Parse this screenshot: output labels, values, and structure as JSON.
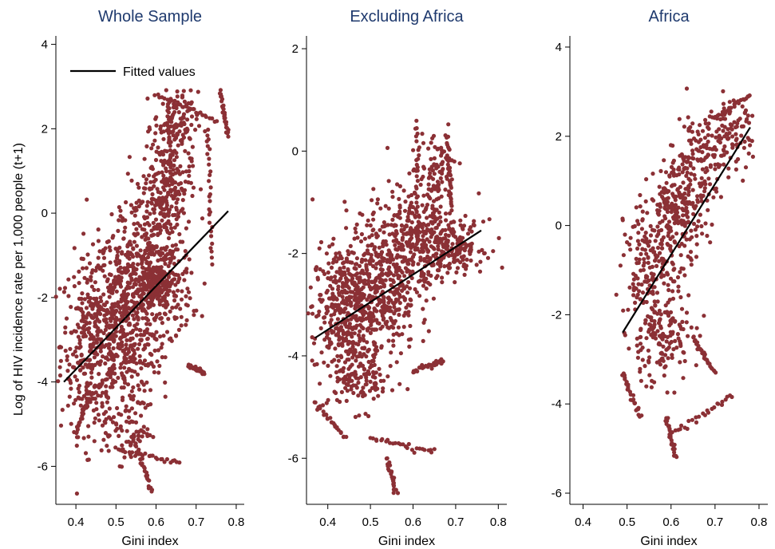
{
  "figure": {
    "ylabel": "Log of HIV incidence rate per 1,000 people (t+1)",
    "legend": {
      "label": "Fitted values",
      "position": "top-left of first panel",
      "line_color": "#000000"
    },
    "marker_color": "#8b3035",
    "title_color": "#1f3a6e"
  },
  "chart_data": [
    {
      "type": "scatter",
      "title": "Whole Sample",
      "xlabel": "Gini index",
      "ylabel": "Log of HIV incidence rate per 1,000 people (t+1)",
      "xlim": [
        0.35,
        0.82
      ],
      "ylim": [
        -6.9,
        4.2
      ],
      "xticks": [
        "0.4",
        "0.5",
        "0.6",
        "0.7",
        "0.8"
      ],
      "yticks": [
        "-6",
        "-4",
        "-2",
        "0",
        "2",
        "4"
      ],
      "xtick_values": [
        0.4,
        0.5,
        0.6,
        0.7,
        0.8
      ],
      "ytick_values": [
        -6,
        -4,
        -2,
        0,
        2,
        4
      ],
      "fitted_line": {
        "x": [
          0.37,
          0.78
        ],
        "y": [
          -4.0,
          0.05
        ]
      },
      "clusters": [
        {
          "x": [
            0.37,
            0.52
          ],
          "y": [
            -5.0,
            -1.2
          ],
          "n": 380
        },
        {
          "x": [
            0.45,
            0.6
          ],
          "y": [
            -4.5,
            -0.5
          ],
          "n": 420
        },
        {
          "x": [
            0.52,
            0.68
          ],
          "y": [
            -3.2,
            0.5
          ],
          "n": 380
        },
        {
          "x": [
            0.55,
            0.65
          ],
          "y": [
            -2.3,
            -1.2
          ],
          "n": 160
        },
        {
          "x": [
            0.57,
            0.68
          ],
          "y": [
            -0.2,
            1.6
          ],
          "n": 170
        },
        {
          "x": [
            0.6,
            0.7
          ],
          "y": [
            1.4,
            2.8
          ],
          "n": 110
        },
        {
          "x": [
            0.47,
            0.58
          ],
          "y": [
            -4.5,
            -5.8
          ],
          "n": 70
        }
      ],
      "trails": [
        {
          "x": [
            0.6,
            0.75
          ],
          "y": [
            2.8,
            2.2
          ]
        },
        {
          "x": [
            0.76,
            0.78
          ],
          "y": [
            2.9,
            1.8
          ]
        },
        {
          "x": [
            0.73,
            0.74
          ],
          "y": [
            2.0,
            -1.2
          ]
        },
        {
          "x": [
            0.63,
            0.64
          ],
          "y": [
            2.6,
            0.6
          ]
        },
        {
          "x": [
            0.55,
            0.59
          ],
          "y": [
            -5.5,
            -6.6
          ]
        },
        {
          "x": [
            0.5,
            0.66
          ],
          "y": [
            -5.6,
            -5.9
          ]
        },
        {
          "x": [
            0.68,
            0.72
          ],
          "y": [
            -3.6,
            -3.8
          ]
        },
        {
          "x": [
            0.4,
            0.43
          ],
          "y": [
            -5.2,
            -4.4
          ]
        }
      ]
    },
    {
      "type": "scatter",
      "title": "Excluding Africa",
      "xlabel": "Gini index",
      "xlim": [
        0.35,
        0.82
      ],
      "ylim": [
        -6.9,
        2.25
      ],
      "xticks": [
        "0.4",
        "0.5",
        "0.6",
        "0.7",
        "0.8"
      ],
      "yticks": [
        "-6",
        "-4",
        "-2",
        "0",
        "2"
      ],
      "xtick_values": [
        0.4,
        0.5,
        0.6,
        0.7,
        0.8
      ],
      "ytick_values": [
        -6,
        -4,
        -2,
        0,
        2
      ],
      "fitted_line": {
        "x": [
          0.37,
          0.76
        ],
        "y": [
          -3.65,
          -1.55
        ]
      },
      "clusters": [
        {
          "x": [
            0.37,
            0.5
          ],
          "y": [
            -4.2,
            -2.0
          ],
          "n": 350
        },
        {
          "x": [
            0.45,
            0.6
          ],
          "y": [
            -3.8,
            -1.2
          ],
          "n": 420
        },
        {
          "x": [
            0.55,
            0.68
          ],
          "y": [
            -2.8,
            -0.8
          ],
          "n": 250
        },
        {
          "x": [
            0.63,
            0.76
          ],
          "y": [
            -2.3,
            -1.4
          ],
          "n": 160
        },
        {
          "x": [
            0.4,
            0.55
          ],
          "y": [
            -5.0,
            -3.8
          ],
          "n": 130
        },
        {
          "x": [
            0.62,
            0.7
          ],
          "y": [
            -1.2,
            0.3
          ],
          "n": 90
        }
      ],
      "trails": [
        {
          "x": [
            0.61,
            0.61
          ],
          "y": [
            0.6,
            -1.5
          ]
        },
        {
          "x": [
            0.68,
            0.69
          ],
          "y": [
            0.3,
            -1.2
          ]
        },
        {
          "x": [
            0.5,
            0.65
          ],
          "y": [
            -5.6,
            -5.9
          ]
        },
        {
          "x": [
            0.54,
            0.56
          ],
          "y": [
            -6.0,
            -6.7
          ]
        },
        {
          "x": [
            0.6,
            0.67
          ],
          "y": [
            -4.3,
            -4.1
          ]
        },
        {
          "x": [
            0.37,
            0.44
          ],
          "y": [
            -4.9,
            -5.6
          ]
        }
      ]
    },
    {
      "type": "scatter",
      "title": "Africa",
      "xlabel": "Gini index",
      "xlim": [
        0.37,
        0.82
      ],
      "ylim": [
        -6.25,
        4.25
      ],
      "xticks": [
        "0.4",
        "0.5",
        "0.6",
        "0.7",
        "0.8"
      ],
      "yticks": [
        "-6",
        "-4",
        "-2",
        "0",
        "2",
        "4"
      ],
      "xtick_values": [
        0.4,
        0.5,
        0.6,
        0.7,
        0.8
      ],
      "ytick_values": [
        -6,
        -4,
        -2,
        0,
        2,
        4
      ],
      "fitted_line": {
        "x": [
          0.49,
          0.78
        ],
        "y": [
          -2.4,
          2.2
        ]
      },
      "clusters": [
        {
          "x": [
            0.5,
            0.62
          ],
          "y": [
            -2.5,
            0.5
          ],
          "n": 230
        },
        {
          "x": [
            0.57,
            0.68
          ],
          "y": [
            -0.5,
            1.5
          ],
          "n": 210
        },
        {
          "x": [
            0.62,
            0.72
          ],
          "y": [
            0.8,
            2.5
          ],
          "n": 110
        },
        {
          "x": [
            0.5,
            0.65
          ],
          "y": [
            -3.5,
            -1.8
          ],
          "n": 120
        },
        {
          "x": [
            0.7,
            0.78
          ],
          "y": [
            1.3,
            2.7
          ],
          "n": 80
        }
      ],
      "trails": [
        {
          "x": [
            0.49,
            0.53
          ],
          "y": [
            -3.3,
            -4.3
          ]
        },
        {
          "x": [
            0.6,
            0.74
          ],
          "y": [
            -4.7,
            -3.8
          ]
        },
        {
          "x": [
            0.59,
            0.61
          ],
          "y": [
            -4.3,
            -5.2
          ]
        },
        {
          "x": [
            0.69,
            0.78
          ],
          "y": [
            2.4,
            2.9
          ]
        },
        {
          "x": [
            0.65,
            0.7
          ],
          "y": [
            -2.5,
            -3.3
          ]
        }
      ]
    }
  ]
}
